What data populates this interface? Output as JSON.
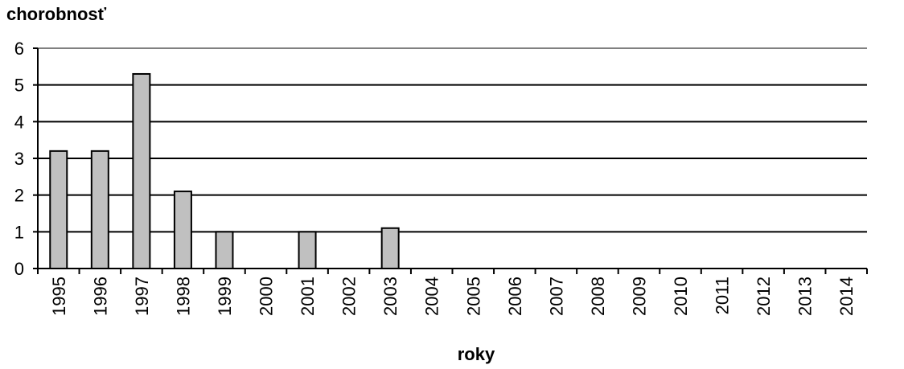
{
  "chart_data": {
    "type": "bar",
    "title": "",
    "ylabel": "chorobnosť",
    "xlabel": "roky",
    "ylim": [
      0,
      6
    ],
    "yticks": [
      0,
      1,
      2,
      3,
      4,
      5,
      6
    ],
    "grid": true,
    "legend": "none",
    "bar_color": "#c0c0c0",
    "categories": [
      "1995",
      "1996",
      "1997",
      "1998",
      "1999",
      "2000",
      "2001",
      "2002",
      "2003",
      "2004",
      "2005",
      "2006",
      "2007",
      "2008",
      "2009",
      "2010",
      "2011",
      "2012",
      "2013",
      "2014"
    ],
    "values": [
      3.2,
      3.2,
      5.3,
      2.1,
      1.0,
      0,
      1.0,
      0,
      1.1,
      0,
      0,
      0,
      0,
      0,
      0,
      0,
      0,
      0,
      0,
      0
    ]
  }
}
